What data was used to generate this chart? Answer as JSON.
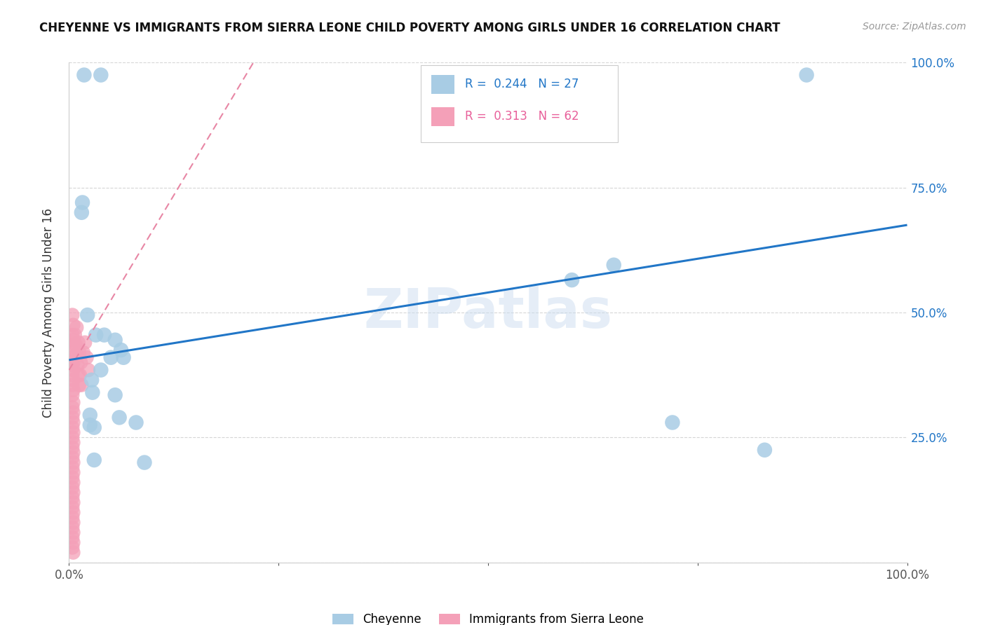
{
  "title": "CHEYENNE VS IMMIGRANTS FROM SIERRA LEONE CHILD POVERTY AMONG GIRLS UNDER 16 CORRELATION CHART",
  "source": "Source: ZipAtlas.com",
  "ylabel": "Child Poverty Among Girls Under 16",
  "xmin": 0.0,
  "xmax": 1.0,
  "ymin": 0.0,
  "ymax": 1.0,
  "xticks": [
    0.0,
    0.25,
    0.5,
    0.75,
    1.0
  ],
  "xticklabels": [
    "0.0%",
    "",
    "",
    "",
    "100.0%"
  ],
  "yticks": [
    0.0,
    0.25,
    0.5,
    0.75,
    1.0
  ],
  "yticklabels_right": [
    "",
    "25.0%",
    "50.0%",
    "75.0%",
    "100.0%"
  ],
  "cheyenne_color": "#a8cce4",
  "sierra_leone_color": "#f4a0b8",
  "trend_blue_color": "#2176c7",
  "trend_pink_color": "#e887a5",
  "watermark": "ZIPatlas",
  "legend_R_blue": "0.244",
  "legend_N_blue": "27",
  "legend_R_pink": "0.313",
  "legend_N_pink": "62",
  "cheyenne_points": [
    [
      0.018,
      0.975
    ],
    [
      0.038,
      0.975
    ],
    [
      0.016,
      0.72
    ],
    [
      0.015,
      0.7
    ],
    [
      0.022,
      0.495
    ],
    [
      0.032,
      0.455
    ],
    [
      0.042,
      0.455
    ],
    [
      0.055,
      0.445
    ],
    [
      0.062,
      0.425
    ],
    [
      0.038,
      0.385
    ],
    [
      0.027,
      0.365
    ],
    [
      0.028,
      0.34
    ],
    [
      0.055,
      0.335
    ],
    [
      0.025,
      0.295
    ],
    [
      0.025,
      0.275
    ],
    [
      0.03,
      0.27
    ],
    [
      0.03,
      0.205
    ],
    [
      0.06,
      0.29
    ],
    [
      0.08,
      0.28
    ],
    [
      0.09,
      0.2
    ],
    [
      0.6,
      0.565
    ],
    [
      0.65,
      0.595
    ],
    [
      0.72,
      0.28
    ],
    [
      0.83,
      0.225
    ],
    [
      0.88,
      0.975
    ],
    [
      0.05,
      0.41
    ],
    [
      0.065,
      0.41
    ]
  ],
  "sierra_leone_points": [
    [
      0.004,
      0.495
    ],
    [
      0.005,
      0.475
    ],
    [
      0.004,
      0.455
    ],
    [
      0.005,
      0.445
    ],
    [
      0.004,
      0.435
    ],
    [
      0.005,
      0.42
    ],
    [
      0.004,
      0.41
    ],
    [
      0.005,
      0.4
    ],
    [
      0.004,
      0.395
    ],
    [
      0.005,
      0.385
    ],
    [
      0.004,
      0.375
    ],
    [
      0.005,
      0.365
    ],
    [
      0.004,
      0.355
    ],
    [
      0.005,
      0.345
    ],
    [
      0.004,
      0.335
    ],
    [
      0.005,
      0.32
    ],
    [
      0.004,
      0.31
    ],
    [
      0.005,
      0.3
    ],
    [
      0.004,
      0.29
    ],
    [
      0.005,
      0.28
    ],
    [
      0.004,
      0.27
    ],
    [
      0.005,
      0.26
    ],
    [
      0.004,
      0.25
    ],
    [
      0.005,
      0.24
    ],
    [
      0.004,
      0.23
    ],
    [
      0.005,
      0.22
    ],
    [
      0.004,
      0.21
    ],
    [
      0.005,
      0.2
    ],
    [
      0.004,
      0.19
    ],
    [
      0.005,
      0.18
    ],
    [
      0.004,
      0.17
    ],
    [
      0.005,
      0.16
    ],
    [
      0.004,
      0.15
    ],
    [
      0.005,
      0.14
    ],
    [
      0.004,
      0.13
    ],
    [
      0.005,
      0.12
    ],
    [
      0.004,
      0.11
    ],
    [
      0.005,
      0.1
    ],
    [
      0.004,
      0.09
    ],
    [
      0.005,
      0.08
    ],
    [
      0.004,
      0.07
    ],
    [
      0.005,
      0.06
    ],
    [
      0.004,
      0.05
    ],
    [
      0.005,
      0.04
    ],
    [
      0.004,
      0.03
    ],
    [
      0.005,
      0.02
    ],
    [
      0.009,
      0.47
    ],
    [
      0.011,
      0.44
    ],
    [
      0.012,
      0.42
    ],
    [
      0.014,
      0.4
    ],
    [
      0.013,
      0.375
    ],
    [
      0.015,
      0.355
    ],
    [
      0.017,
      0.42
    ],
    [
      0.019,
      0.44
    ],
    [
      0.021,
      0.41
    ],
    [
      0.023,
      0.385
    ],
    [
      0.007,
      0.455
    ],
    [
      0.008,
      0.435
    ],
    [
      0.009,
      0.415
    ],
    [
      0.01,
      0.395
    ],
    [
      0.011,
      0.375
    ],
    [
      0.012,
      0.355
    ]
  ],
  "blue_trend_x": [
    0.0,
    1.0
  ],
  "blue_trend_y_start": 0.405,
  "blue_trend_y_end": 0.675,
  "pink_trend_x": [
    0.0,
    0.22
  ],
  "pink_trend_y_start": 0.385,
  "pink_trend_y_end": 1.0
}
